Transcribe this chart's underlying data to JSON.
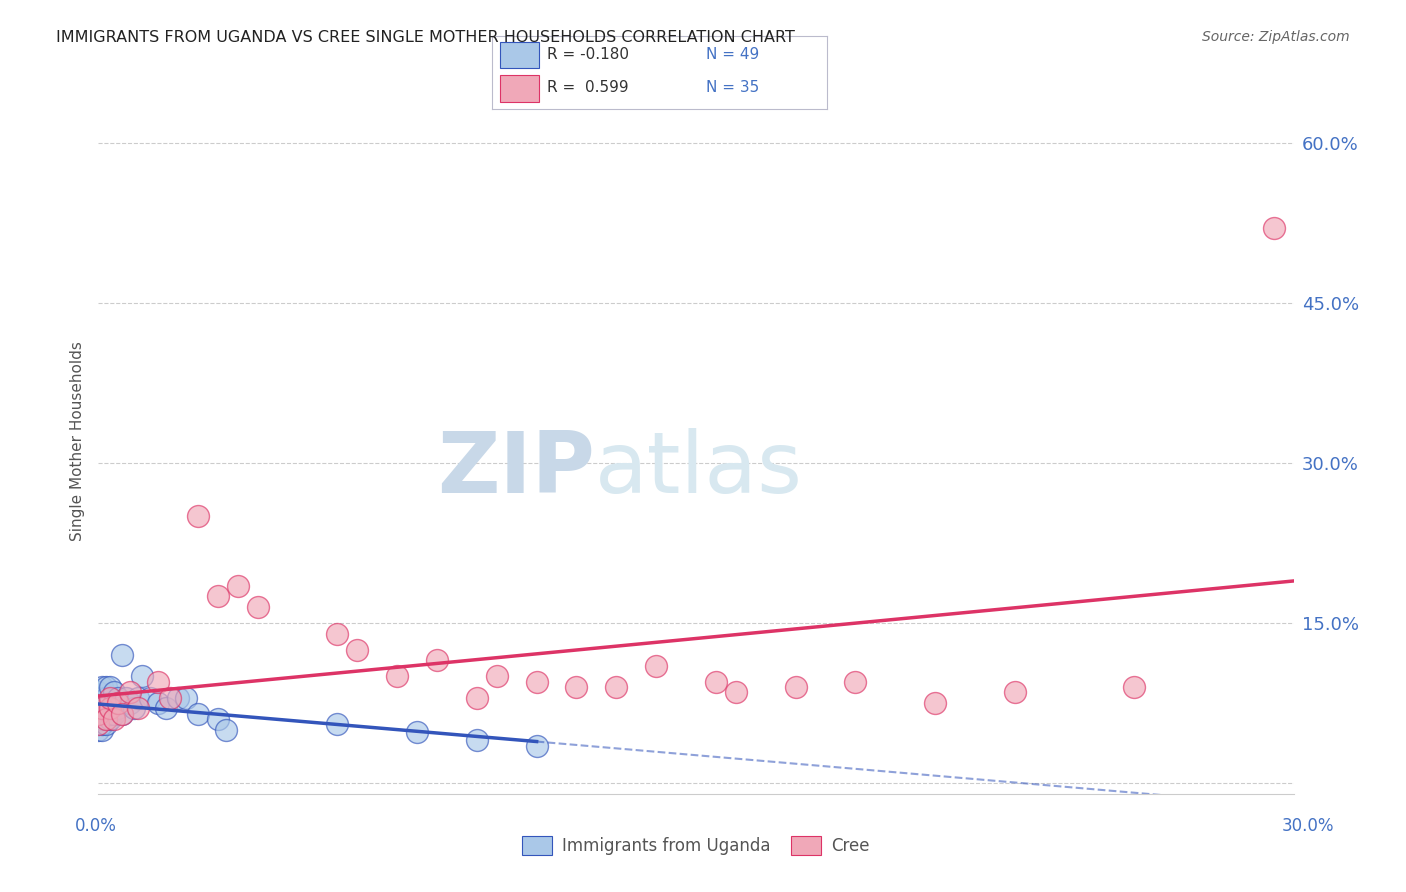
{
  "title": "IMMIGRANTS FROM UGANDA VS CREE SINGLE MOTHER HOUSEHOLDS CORRELATION CHART",
  "source": "Source: ZipAtlas.com",
  "ylabel": "Single Mother Households",
  "xlim": [
    0.0,
    0.3
  ],
  "ylim": [
    -0.01,
    0.65
  ],
  "ytick_values": [
    0.0,
    0.15,
    0.3,
    0.45,
    0.6
  ],
  "ytick_labels": [
    "",
    "15.0%",
    "30.0%",
    "45.0%",
    "60.0%"
  ],
  "color_uganda": "#aac8e8",
  "color_cree": "#f0a8b8",
  "color_uganda_line": "#3355bb",
  "color_cree_line": "#dd3366",
  "watermark_zip": "ZIP",
  "watermark_atlas": "atlas",
  "uganda_x": [
    0.0,
    0.0,
    0.0,
    0.0,
    0.0,
    0.0,
    0.0,
    0.0,
    0.001,
    0.001,
    0.001,
    0.001,
    0.001,
    0.001,
    0.001,
    0.002,
    0.002,
    0.002,
    0.002,
    0.002,
    0.002,
    0.003,
    0.003,
    0.003,
    0.003,
    0.004,
    0.004,
    0.004,
    0.005,
    0.005,
    0.006,
    0.006,
    0.007,
    0.008,
    0.009,
    0.01,
    0.011,
    0.013,
    0.015,
    0.017,
    0.02,
    0.022,
    0.025,
    0.03,
    0.032,
    0.06,
    0.08,
    0.095,
    0.11
  ],
  "uganda_y": [
    0.05,
    0.055,
    0.06,
    0.065,
    0.07,
    0.075,
    0.08,
    0.085,
    0.05,
    0.055,
    0.06,
    0.065,
    0.07,
    0.08,
    0.09,
    0.055,
    0.06,
    0.07,
    0.075,
    0.08,
    0.09,
    0.06,
    0.065,
    0.075,
    0.09,
    0.065,
    0.075,
    0.085,
    0.07,
    0.08,
    0.065,
    0.12,
    0.08,
    0.075,
    0.07,
    0.08,
    0.1,
    0.08,
    0.075,
    0.07,
    0.08,
    0.08,
    0.065,
    0.06,
    0.05,
    0.055,
    0.048,
    0.04,
    0.035
  ],
  "cree_x": [
    0.0,
    0.0,
    0.001,
    0.002,
    0.003,
    0.003,
    0.004,
    0.005,
    0.006,
    0.008,
    0.01,
    0.015,
    0.018,
    0.025,
    0.03,
    0.035,
    0.04,
    0.06,
    0.065,
    0.075,
    0.085,
    0.095,
    0.1,
    0.11,
    0.12,
    0.13,
    0.14,
    0.155,
    0.16,
    0.175,
    0.19,
    0.21,
    0.23,
    0.26,
    0.295
  ],
  "cree_y": [
    0.055,
    0.065,
    0.07,
    0.06,
    0.07,
    0.08,
    0.06,
    0.075,
    0.065,
    0.085,
    0.07,
    0.095,
    0.08,
    0.25,
    0.175,
    0.185,
    0.165,
    0.14,
    0.125,
    0.1,
    0.115,
    0.08,
    0.1,
    0.095,
    0.09,
    0.09,
    0.11,
    0.095,
    0.085,
    0.09,
    0.095,
    0.075,
    0.085,
    0.09,
    0.52
  ]
}
